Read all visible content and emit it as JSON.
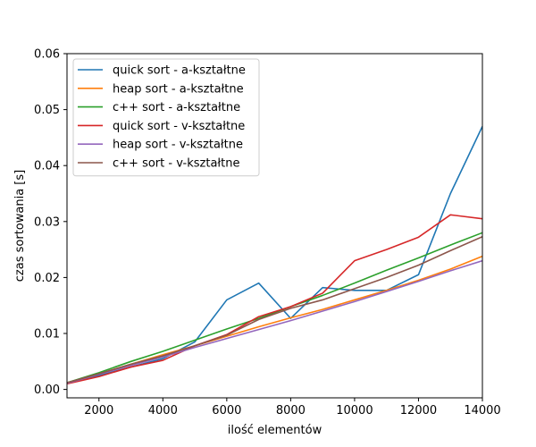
{
  "chart_data": {
    "type": "line",
    "xlabel": "ilość elementów",
    "ylabel": "czas sortowania [s]",
    "xlim": [
      1000,
      14000
    ],
    "ylim": [
      -0.0015,
      0.06
    ],
    "xticks": [
      2000,
      4000,
      6000,
      8000,
      10000,
      12000,
      14000
    ],
    "xtick_labels": [
      "2000",
      "4000",
      "6000",
      "8000",
      "10000",
      "12000",
      "14000"
    ],
    "yticks": [
      0.0,
      0.01,
      0.02,
      0.03,
      0.04,
      0.05,
      0.06
    ],
    "ytick_labels": [
      "0.00",
      "0.01",
      "0.02",
      "0.03",
      "0.04",
      "0.05",
      "0.06"
    ],
    "grid": false,
    "legend_position": "top-left",
    "x": [
      1000,
      2000,
      3000,
      4000,
      5000,
      6000,
      7000,
      8000,
      9000,
      10000,
      11000,
      12000,
      13000,
      14000
    ],
    "series": [
      {
        "name": "quick sort - a-kształtne",
        "color": "#1f77b4",
        "values": [
          0.0012,
          0.0025,
          0.004,
          0.0055,
          0.0085,
          0.016,
          0.019,
          0.0127,
          0.0182,
          0.0177,
          0.0177,
          0.0205,
          0.035,
          0.047
        ]
      },
      {
        "name": "heap sort - a-kształtne",
        "color": "#ff7f0e",
        "values": [
          0.0012,
          0.0028,
          0.0045,
          0.0062,
          0.0078,
          0.0095,
          0.0112,
          0.0128,
          0.0143,
          0.016,
          0.0177,
          0.0195,
          0.0215,
          0.0238
        ]
      },
      {
        "name": "c++ sort - a-kształtne",
        "color": "#2ca02c",
        "values": [
          0.0012,
          0.003,
          0.005,
          0.0068,
          0.0088,
          0.0108,
          0.0127,
          0.0148,
          0.0168,
          0.019,
          0.0213,
          0.0235,
          0.0258,
          0.028
        ]
      },
      {
        "name": "quick sort - v-kształtne",
        "color": "#d62728",
        "values": [
          0.001,
          0.0023,
          0.004,
          0.0052,
          0.0078,
          0.0098,
          0.013,
          0.0148,
          0.0172,
          0.023,
          0.025,
          0.0272,
          0.0312,
          0.0305
        ]
      },
      {
        "name": "heap sort - v-kształtne",
        "color": "#9467bd",
        "values": [
          0.0011,
          0.0027,
          0.0043,
          0.0058,
          0.0075,
          0.0091,
          0.0107,
          0.0123,
          0.014,
          0.0157,
          0.0175,
          0.0193,
          0.0212,
          0.023
        ]
      },
      {
        "name": "c++ sort - v-kształtne",
        "color": "#8c564b",
        "values": [
          0.0012,
          0.0028,
          0.0045,
          0.006,
          0.0078,
          0.0097,
          0.0125,
          0.0145,
          0.016,
          0.018,
          0.02,
          0.0222,
          0.0248,
          0.0273
        ]
      }
    ]
  }
}
